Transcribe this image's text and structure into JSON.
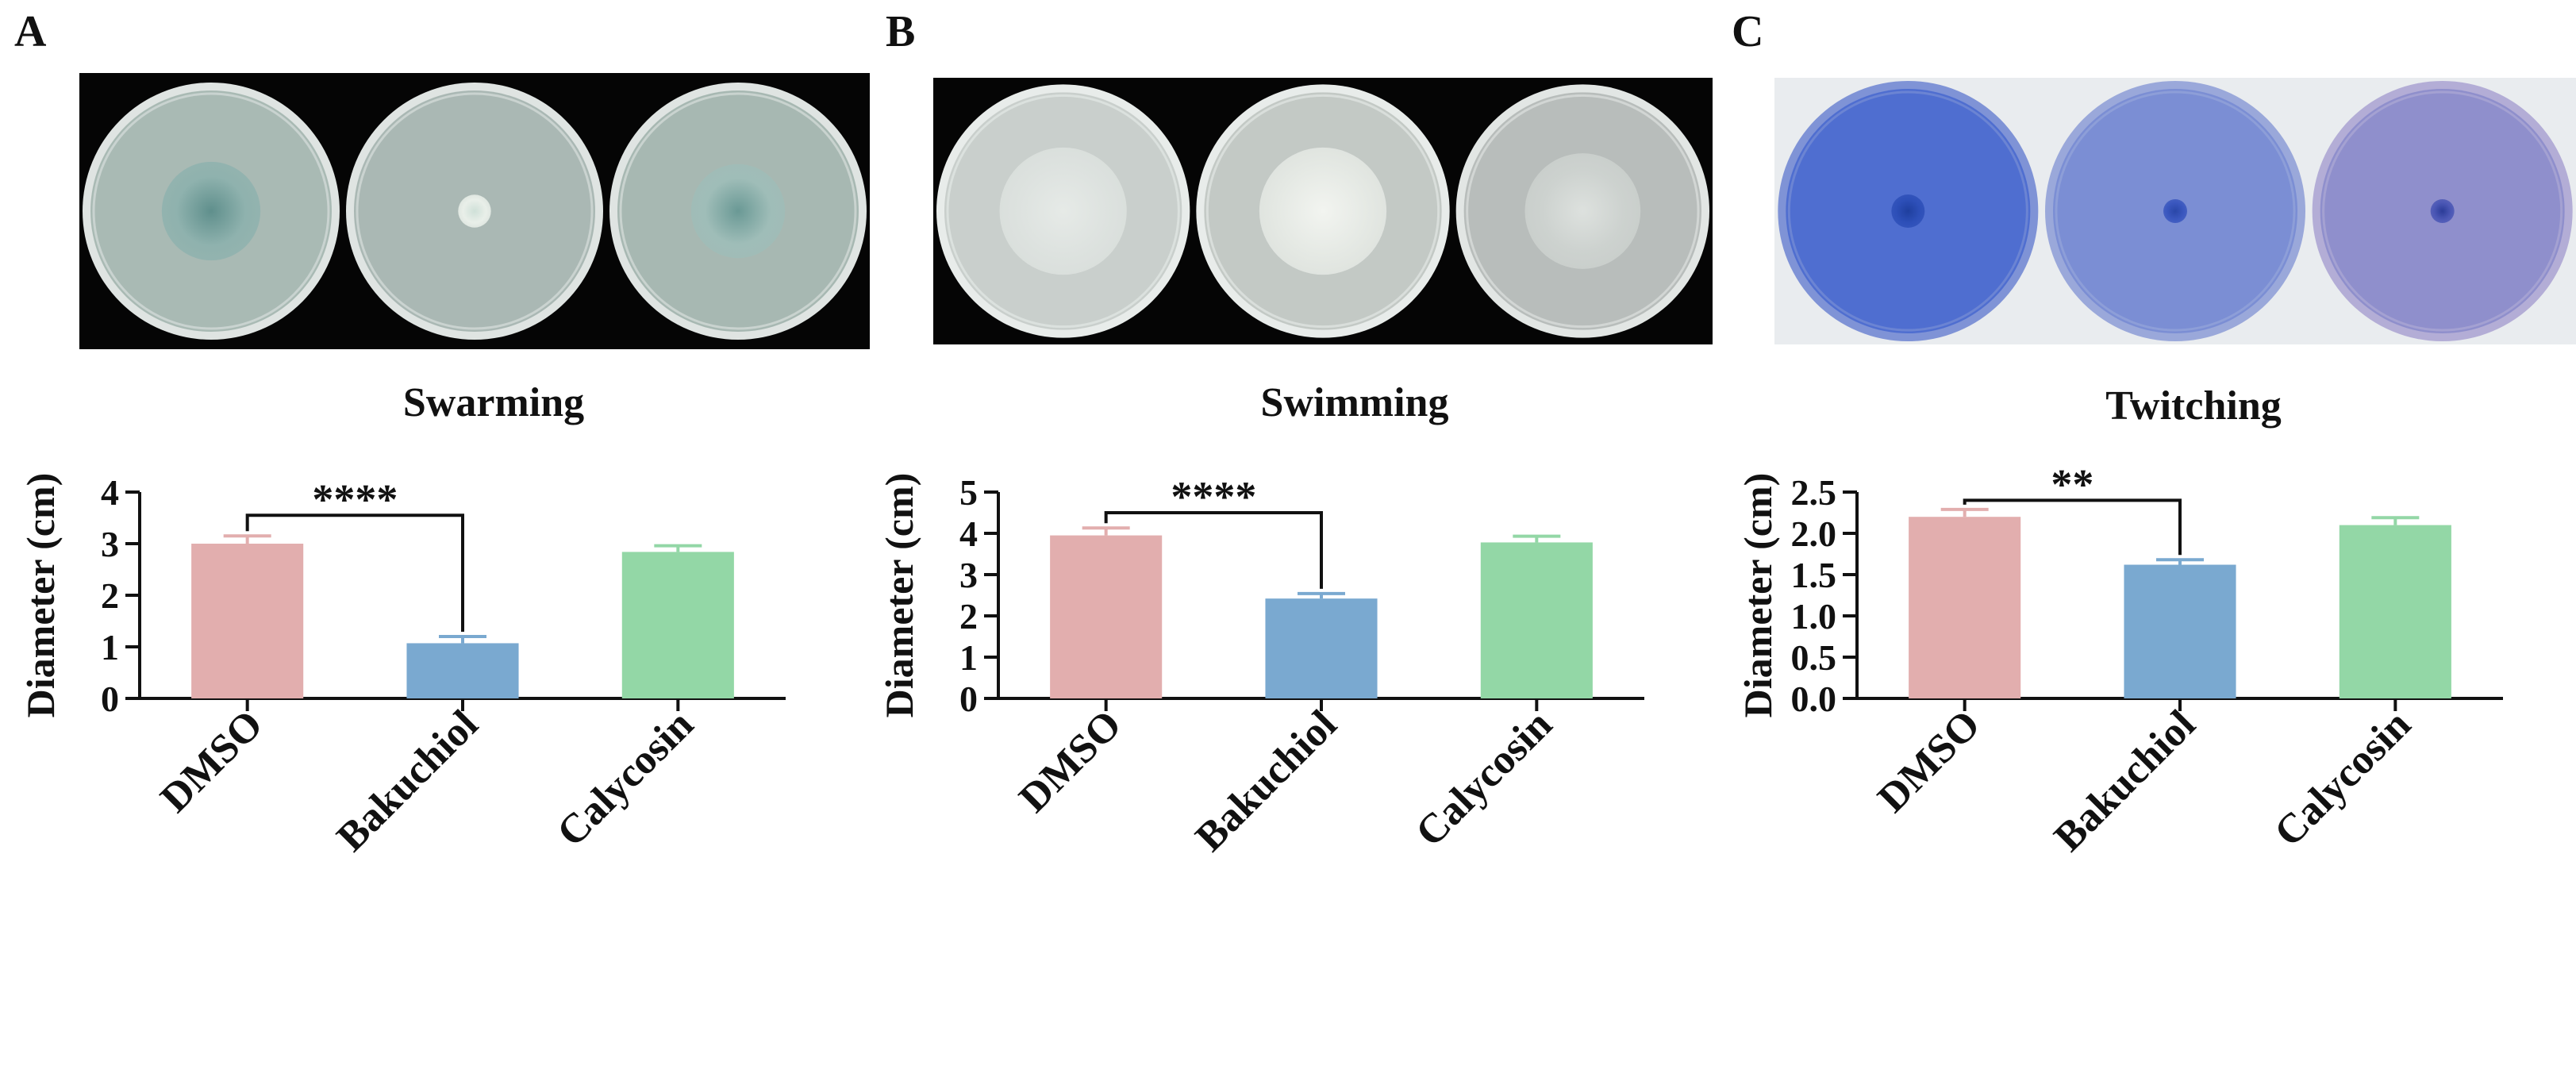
{
  "panels": [
    {
      "letter": "A",
      "title": "Swarming",
      "photo": {
        "background": "#050505",
        "plates": [
          {
            "agar": "#a9bab4",
            "rim": "#dfe4e2",
            "spot_fraction": 0.42,
            "spot_color": "#8fb2ae",
            "spot_center": "#5f8f8c"
          },
          {
            "agar": "#aab8b4",
            "rim": "#dfe4e2",
            "spot_fraction": 0.14,
            "spot_color": "#e9efe9",
            "spot_center": "#cfe0d8"
          },
          {
            "agar": "#a7b8b2",
            "rim": "#dfe4e2",
            "spot_fraction": 0.4,
            "spot_color": "#9fbdb8",
            "spot_center": "#6a9995"
          }
        ]
      },
      "chart_data": {
        "type": "bar",
        "categories": [
          "DMSO",
          "Bakuchiol",
          "Calycosin"
        ],
        "values": [
          3.0,
          1.07,
          2.84
        ],
        "errors": [
          0.15,
          0.13,
          0.12
        ],
        "colors": [
          "#e2aeae",
          "#7aa9d0",
          "#93d7a6"
        ],
        "ylabel": "Diameter (cm)",
        "ylim": [
          0,
          4
        ],
        "yticks": [
          0,
          1,
          2,
          3,
          4
        ],
        "yticklabels": [
          "0",
          "1",
          "2",
          "3",
          "4"
        ],
        "significance": {
          "from": 0,
          "to": 1,
          "label": "****",
          "y": 3.55
        }
      }
    },
    {
      "letter": "B",
      "title": "Swimming",
      "photo": {
        "background": "#050505",
        "plates": [
          {
            "agar": "#c9cfcc",
            "rim": "#e8ecea",
            "spot_fraction": 0.55,
            "spot_color": "#dde2df",
            "spot_center": "#e6eae7"
          },
          {
            "agar": "#c3c9c5",
            "rim": "#e8ecea",
            "spot_fraction": 0.55,
            "spot_color": "#e5e9e4",
            "spot_center": "#f2f4f0"
          },
          {
            "agar": "#b8bdbb",
            "rim": "#e2e6e4",
            "spot_fraction": 0.5,
            "spot_color": "#cdd2cf",
            "spot_center": "#dde1de"
          }
        ]
      },
      "chart_data": {
        "type": "bar",
        "categories": [
          "DMSO",
          "Bakuchiol",
          "Calycosin"
        ],
        "values": [
          3.95,
          2.42,
          3.78
        ],
        "errors": [
          0.18,
          0.12,
          0.15
        ],
        "colors": [
          "#e2aeae",
          "#7aa9d0",
          "#93d7a6"
        ],
        "ylabel": "Diameter (cm)",
        "ylim": [
          0,
          5
        ],
        "yticks": [
          0,
          1,
          2,
          3,
          4,
          5
        ],
        "yticklabels": [
          "0",
          "1",
          "2",
          "3",
          "4",
          "5"
        ],
        "significance": {
          "from": 0,
          "to": 1,
          "label": "****",
          "y": 4.5
        }
      }
    },
    {
      "letter": "C",
      "title": "Twitching",
      "photo": {
        "background": "#e9ecef",
        "plates": [
          {
            "agar": "#4f6ed0",
            "rim": "#7f93d6",
            "spot_fraction": 0.14,
            "spot_color": "#2d4fb8",
            "spot_center": "#1f3f9e"
          },
          {
            "agar": "#7b8ed4",
            "rim": "#9aa8da",
            "spot_fraction": 0.1,
            "spot_color": "#3a57bf",
            "spot_center": "#2a47a8"
          },
          {
            "agar": "#8f8fcc",
            "rim": "#b3add6",
            "spot_fraction": 0.1,
            "spot_color": "#4b57b5",
            "spot_center": "#2b3c98"
          }
        ]
      },
      "chart_data": {
        "type": "bar",
        "categories": [
          "DMSO",
          "Bakuchiol",
          "Calycosin"
        ],
        "values": [
          2.2,
          1.62,
          2.1
        ],
        "errors": [
          0.09,
          0.06,
          0.09
        ],
        "colors": [
          "#e2aeae",
          "#7aa9d0",
          "#93d7a6"
        ],
        "ylabel": "Diameter (cm)",
        "ylim": [
          0,
          2.5
        ],
        "yticks": [
          0,
          0.5,
          1,
          1.5,
          2,
          2.5
        ],
        "yticklabels": [
          "0.0",
          "0.5",
          "1.0",
          "1.5",
          "2.0",
          "2.5"
        ],
        "significance": {
          "from": 0,
          "to": 1,
          "label": "**",
          "y": 2.4
        }
      }
    }
  ]
}
